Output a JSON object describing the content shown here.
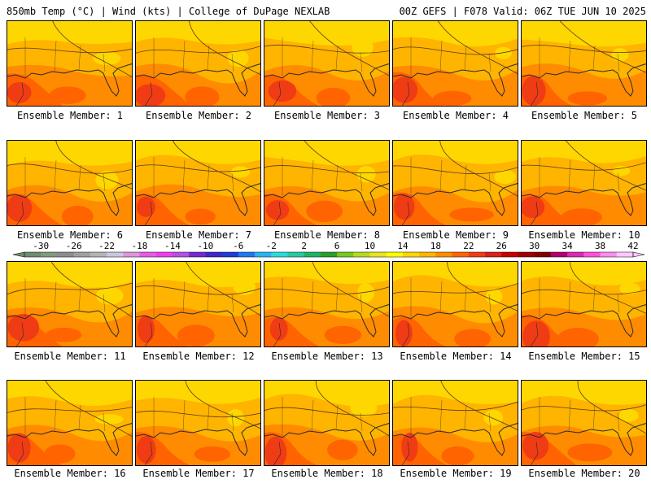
{
  "header": {
    "left": "850mb Temp (°C) | Wind (kts) | College of DuPage NEXLAB",
    "right": "00Z GEFS | F078 Valid: 06Z TUE JUN 10 2025"
  },
  "panels": [
    {
      "label": "Ensemble Member: 1"
    },
    {
      "label": "Ensemble Member: 2"
    },
    {
      "label": "Ensemble Member: 3"
    },
    {
      "label": "Ensemble Member: 4"
    },
    {
      "label": "Ensemble Member: 5"
    },
    {
      "label": "Ensemble Member: 6"
    },
    {
      "label": "Ensemble Member: 7"
    },
    {
      "label": "Ensemble Member: 8"
    },
    {
      "label": "Ensemble Member: 9"
    },
    {
      "label": "Ensemble Member: 10"
    },
    {
      "label": "Ensemble Member: 11"
    },
    {
      "label": "Ensemble Member: 12"
    },
    {
      "label": "Ensemble Member: 13"
    },
    {
      "label": "Ensemble Member: 14"
    },
    {
      "label": "Ensemble Member: 15"
    },
    {
      "label": "Ensemble Member: 16"
    },
    {
      "label": "Ensemble Member: 17"
    },
    {
      "label": "Ensemble Member: 18"
    },
    {
      "label": "Ensemble Member: 19"
    },
    {
      "label": "Ensemble Member: 20"
    }
  ],
  "colorbar": {
    "ticks": [
      "-30",
      "-26",
      "-22",
      "-18",
      "-14",
      "-10",
      "-6",
      "-2",
      "2",
      "6",
      "10",
      "14",
      "18",
      "22",
      "26",
      "30",
      "34",
      "38",
      "42"
    ],
    "colors": [
      "#6e8c6e",
      "#7f9a7f",
      "#8c8c8c",
      "#a0a0a0",
      "#b4b4b4",
      "#c8c8dc",
      "#dc96dc",
      "#e65ae6",
      "#f03cf0",
      "#b450e6",
      "#7828d2",
      "#3c28c8",
      "#1e3cdc",
      "#1e78f0",
      "#28b4f0",
      "#28dcdc",
      "#28c8a0",
      "#1eb464",
      "#28a028",
      "#78c81e",
      "#b4dc1e",
      "#e6e61e",
      "#ffff00",
      "#ffd700",
      "#ffb400",
      "#ff8c00",
      "#ff6400",
      "#f03c14",
      "#dc1e1e",
      "#c80000",
      "#a00000",
      "#800000",
      "#b4006e",
      "#dc28b4",
      "#ff50dc",
      "#ff8cf0",
      "#ffc8ff"
    ],
    "accent_colors": {
      "warm": "#ff8c00",
      "hot": "#e62814",
      "mild": "#ffb400",
      "cool": "#ffe000"
    }
  }
}
